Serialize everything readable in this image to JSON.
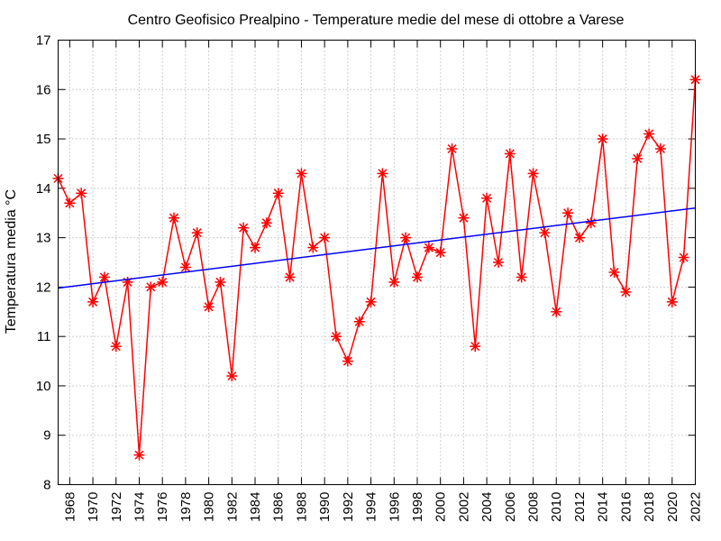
{
  "chart_data": {
    "type": "line",
    "title": "Centro Geofisico Prealpino - Temperature medie del mese di ottobre a Varese",
    "ylabel": "Temperatura media °C",
    "xlabel": "",
    "xlim": [
      1967,
      2022
    ],
    "ylim": [
      8,
      17
    ],
    "yticks": [
      8,
      9,
      10,
      11,
      12,
      13,
      14,
      15,
      16,
      17
    ],
    "xticks": [
      1968,
      1970,
      1972,
      1974,
      1976,
      1978,
      1980,
      1982,
      1984,
      1986,
      1988,
      1990,
      1992,
      1994,
      1996,
      1998,
      2000,
      2002,
      2004,
      2006,
      2008,
      2010,
      2012,
      2014,
      2016,
      2018,
      2020,
      2022
    ],
    "grid": true,
    "series": [
      {
        "name": "",
        "style": "line-markers",
        "color": "#ff0000",
        "marker": "asterisk",
        "x": [
          1967,
          1968,
          1969,
          1970,
          1971,
          1972,
          1973,
          1974,
          1975,
          1976,
          1977,
          1978,
          1979,
          1980,
          1981,
          1982,
          1983,
          1984,
          1985,
          1986,
          1987,
          1988,
          1989,
          1990,
          1991,
          1992,
          1993,
          1994,
          1995,
          1996,
          1997,
          1998,
          1999,
          2000,
          2001,
          2002,
          2003,
          2004,
          2005,
          2006,
          2007,
          2008,
          2009,
          2010,
          2011,
          2012,
          2013,
          2014,
          2015,
          2016,
          2017,
          2018,
          2019,
          2020,
          2021,
          2022
        ],
        "y": [
          14.2,
          13.7,
          13.9,
          11.7,
          12.2,
          10.8,
          12.1,
          8.6,
          12.0,
          12.1,
          13.4,
          12.4,
          13.1,
          11.6,
          12.1,
          10.2,
          13.2,
          12.8,
          13.3,
          13.9,
          12.2,
          14.3,
          12.8,
          13.0,
          11.0,
          10.5,
          11.3,
          11.7,
          14.3,
          12.1,
          13.0,
          12.2,
          12.8,
          12.7,
          14.8,
          13.4,
          10.8,
          13.8,
          12.5,
          14.7,
          12.2,
          14.3,
          13.1,
          11.5,
          13.5,
          13.0,
          13.3,
          15.0,
          12.3,
          11.9,
          14.6,
          15.1,
          14.8,
          11.7,
          12.6,
          16.2
        ]
      },
      {
        "name": "",
        "style": "line",
        "color": "#0000ff",
        "x": [
          1967,
          2022
        ],
        "y": [
          11.98,
          13.6
        ]
      }
    ]
  }
}
